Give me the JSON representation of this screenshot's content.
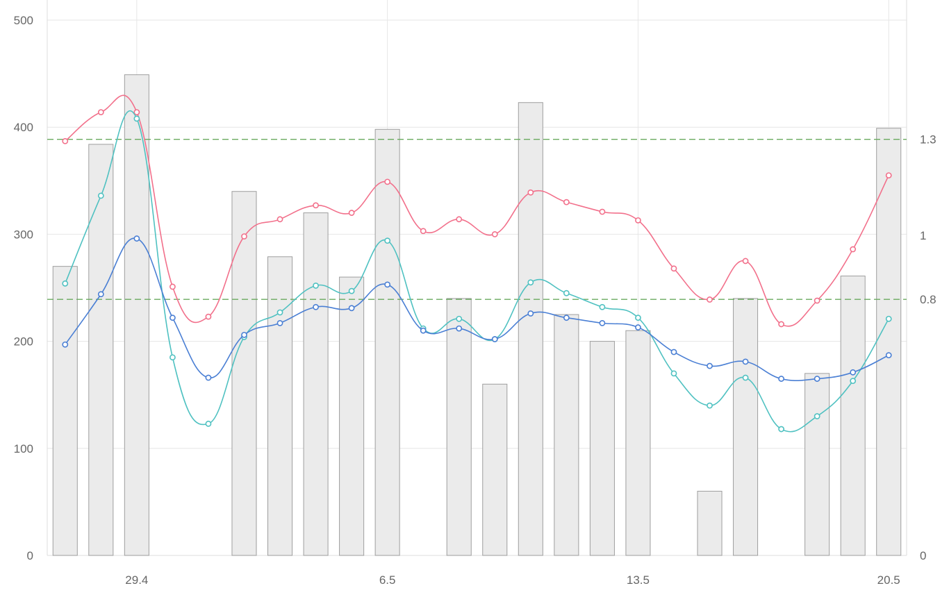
{
  "chart_data": {
    "type": "bar",
    "title": "",
    "x_tick_labels": [
      "29.4",
      "6.5",
      "13.5",
      "20.5"
    ],
    "x_tick_indices": [
      2,
      9,
      16,
      23
    ],
    "point_count": 24,
    "y_left": {
      "ticks": [
        "0",
        "100",
        "200",
        "300",
        "400",
        "500"
      ],
      "range": [
        0,
        500
      ]
    },
    "y_right": {
      "ticks": [
        "0",
        "0.8",
        "1",
        "1.3"
      ],
      "tick_values": [
        0,
        0.8,
        1,
        1.3
      ],
      "range": [
        0,
        1.5
      ]
    },
    "reference_lines": [
      {
        "axis": "right",
        "value": 1.3,
        "color": "#6aaa5f"
      },
      {
        "axis": "right",
        "value": 0.8,
        "color": "#6aaa5f"
      }
    ],
    "bars": {
      "axis": "left",
      "color": "#ebebeb",
      "border": "#9e9e9e",
      "values": [
        270,
        384,
        449,
        null,
        null,
        340,
        279,
        320,
        260,
        398,
        null,
        240,
        160,
        423,
        225,
        200,
        210,
        null,
        60,
        240,
        null,
        170,
        261,
        399
      ]
    },
    "series": [
      {
        "axis": "left",
        "color": "#f2708b",
        "values": [
          387,
          414,
          414,
          251,
          223,
          298,
          314,
          327,
          320,
          349,
          303,
          314,
          300,
          339,
          330,
          321,
          313,
          268,
          239,
          275,
          216,
          238,
          286,
          355
        ]
      },
      {
        "axis": "left",
        "color": "#4fc1c1",
        "values": [
          254,
          336,
          408,
          185,
          123,
          204,
          227,
          252,
          247,
          294,
          212,
          221,
          202,
          255,
          245,
          232,
          222,
          170,
          140,
          166,
          118,
          130,
          163,
          221
        ]
      },
      {
        "axis": "left",
        "color": "#4a7fd4",
        "values": [
          197,
          244,
          296,
          222,
          166,
          206,
          217,
          232,
          231,
          253,
          210,
          212,
          202,
          226,
          222,
          217,
          213,
          190,
          177,
          181,
          165,
          165,
          171,
          187
        ]
      }
    ]
  }
}
